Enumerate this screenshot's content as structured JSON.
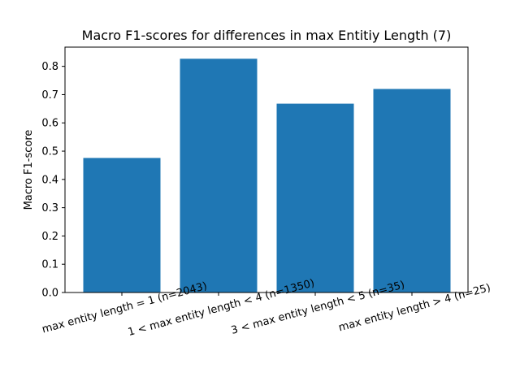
{
  "chart_data": {
    "type": "bar",
    "title": "Macro F1-scores for differences in max Entitiy Length (7)",
    "xlabel": "",
    "ylabel": "Macro F1-score",
    "categories": [
      "max entity length = 1 (n=2043)",
      "1 < max entity length < 4 (n=1350)",
      "3 < max entity length < 5 (n=35)",
      "max entity length > 4 (n=25)"
    ],
    "values": [
      0.476,
      0.827,
      0.668,
      0.72
    ],
    "ylim": [
      0,
      0.868
    ],
    "yticks": [
      0.0,
      0.1,
      0.2,
      0.3,
      0.4,
      0.5,
      0.6,
      0.7,
      0.8
    ],
    "ytick_labels": [
      "0.0",
      "0.1",
      "0.2",
      "0.3",
      "0.4",
      "0.5",
      "0.6",
      "0.7",
      "0.8"
    ],
    "grid": false,
    "bar_color": "#1f77b4",
    "x_tick_rotation_deg": 15
  }
}
